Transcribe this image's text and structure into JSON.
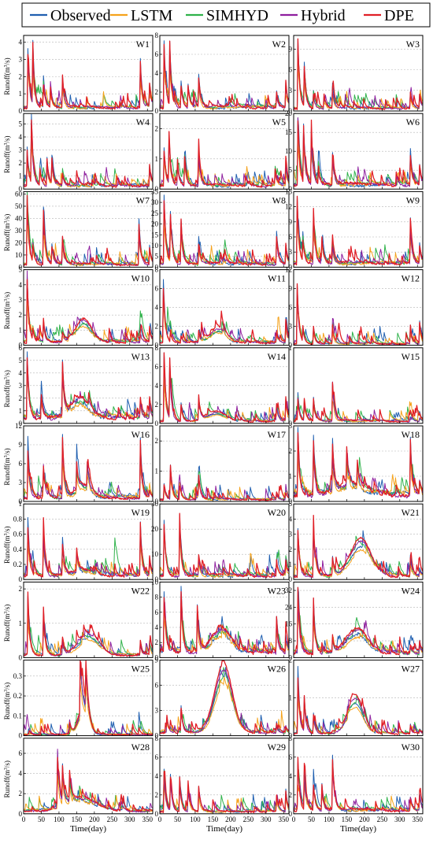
{
  "legend": {
    "entries": [
      {
        "name": "Observed",
        "color": "#1f5fb0"
      },
      {
        "name": "LSTM",
        "color": "#f5a21b"
      },
      {
        "name": "SIMHYD",
        "color": "#2fb24a"
      },
      {
        "name": "Hybrid",
        "color": "#8e1e9e"
      },
      {
        "name": "DPE",
        "color": "#e01f26"
      }
    ]
  },
  "axes": {
    "xlabel": "Time(day)",
    "ylabel_base": "Runoff(m",
    "ylabel_sup": "3",
    "ylabel_end": "/s)"
  },
  "chart_data": {
    "type": "line",
    "x_range": [
      0,
      365
    ],
    "x_ticks": [
      0,
      50,
      100,
      150,
      200,
      250,
      300,
      350
    ],
    "grid": "horizontal-dashed",
    "legend_placement": "top",
    "series": [
      "Observed",
      "LSTM",
      "SIMHYD",
      "Hybrid",
      "DPE"
    ],
    "panels": [
      {
        "id": "W1",
        "yticks": [
          0,
          1,
          2,
          3,
          4
        ],
        "ymax": 4.4,
        "base": 0.25,
        "peaks": [
          [
            12,
            3.7
          ],
          [
            25,
            4.1
          ],
          [
            55,
            1.8
          ],
          [
            75,
            1.6
          ],
          [
            110,
            2.0
          ],
          [
            330,
            2.8
          ],
          [
            355,
            1.9
          ]
        ],
        "season": null,
        "seed": 1
      },
      {
        "id": "W2",
        "yticks": [
          0,
          2,
          4,
          6,
          8
        ],
        "ymax": 8,
        "base": 0.5,
        "peaks": [
          [
            12,
            7.5
          ],
          [
            28,
            6.8
          ],
          [
            60,
            3.1
          ],
          [
            80,
            2.8
          ],
          [
            110,
            3.8
          ],
          [
            330,
            2.2
          ],
          [
            355,
            3.6
          ]
        ],
        "season": null,
        "seed": 2
      },
      {
        "id": "W3",
        "yticks": [
          0,
          3,
          6,
          9
        ],
        "ymax": 11,
        "base": 0.5,
        "peaks": [
          [
            12,
            10.5
          ],
          [
            30,
            6.5
          ],
          [
            55,
            3.0
          ],
          [
            85,
            2.8
          ],
          [
            110,
            3.5
          ],
          [
            330,
            2.8
          ],
          [
            355,
            3.0
          ]
        ],
        "season": null,
        "seed": 3
      },
      {
        "id": "W4",
        "yticks": [
          0,
          1,
          2,
          3,
          4,
          5
        ],
        "ymax": 5.8,
        "base": 0.35,
        "peaks": [
          [
            10,
            3.0
          ],
          [
            22,
            5.3
          ],
          [
            45,
            2.0
          ],
          [
            65,
            2.5
          ],
          [
            80,
            2.4
          ],
          [
            110,
            1.2
          ],
          [
            355,
            2.2
          ]
        ],
        "season": null,
        "seed": 4
      },
      {
        "id": "W5",
        "yticks": [
          0,
          1,
          2
        ],
        "ymax": 2.5,
        "base": 0.15,
        "peaks": [
          [
            12,
            1.4
          ],
          [
            25,
            2.1
          ],
          [
            50,
            0.9
          ],
          [
            70,
            1.2
          ],
          [
            110,
            1.3
          ],
          [
            325,
            0.8
          ],
          [
            355,
            0.9
          ]
        ],
        "season": null,
        "seed": 5
      },
      {
        "id": "W6",
        "yticks": [
          0,
          5,
          10,
          15,
          20
        ],
        "ymax": 20,
        "base": 1.5,
        "peaks": [
          [
            12,
            19
          ],
          [
            28,
            16
          ],
          [
            50,
            16
          ],
          [
            70,
            6
          ],
          [
            110,
            10
          ],
          [
            330,
            10
          ],
          [
            355,
            7.5
          ]
        ],
        "season": null,
        "seed": 6
      },
      {
        "id": "W7",
        "yticks": [
          0,
          10,
          20,
          30,
          40,
          50,
          60
        ],
        "ymax": 62,
        "base": 3,
        "peaks": [
          [
            10,
            60
          ],
          [
            25,
            22
          ],
          [
            55,
            58
          ],
          [
            80,
            18
          ],
          [
            110,
            25
          ],
          [
            325,
            42
          ],
          [
            355,
            20
          ]
        ],
        "season": null,
        "seed": 7
      },
      {
        "id": "W8",
        "yticks": [
          0,
          5,
          10,
          15,
          20,
          25,
          30,
          35
        ],
        "ymax": 35,
        "base": 2,
        "peaks": [
          [
            12,
            34
          ],
          [
            30,
            24
          ],
          [
            60,
            22
          ],
          [
            110,
            12
          ],
          [
            180,
            5
          ],
          [
            330,
            16
          ],
          [
            355,
            12
          ]
        ],
        "season": null,
        "seed": 8
      },
      {
        "id": "W9",
        "yticks": [
          0,
          3,
          6,
          9,
          12,
          15
        ],
        "ymax": 15,
        "base": 1,
        "peaks": [
          [
            10,
            14
          ],
          [
            25,
            6
          ],
          [
            55,
            13
          ],
          [
            80,
            5
          ],
          [
            110,
            5
          ],
          [
            330,
            9.5
          ],
          [
            355,
            5.5
          ]
        ],
        "season": null,
        "seed": 9
      },
      {
        "id": "W10",
        "yticks": [
          0,
          1,
          2,
          3,
          4,
          5
        ],
        "ymax": 5,
        "base": 0.3,
        "peaks": [
          [
            10,
            4.6
          ],
          [
            25,
            1.2
          ],
          [
            55,
            2.0
          ],
          [
            110,
            1.0
          ],
          [
            330,
            1.0
          ],
          [
            355,
            1.4
          ]
        ],
        "season": {
          "center": 170,
          "width": 30,
          "amp": 1.2
        },
        "seed": 10
      },
      {
        "id": "W11",
        "yticks": [
          0,
          2,
          4,
          6,
          8
        ],
        "ymax": 8,
        "base": 0.4,
        "peaks": [
          [
            10,
            6.8
          ],
          [
            30,
            1.5
          ],
          [
            60,
            1.2
          ],
          [
            110,
            1.6
          ],
          [
            330,
            1.5
          ],
          [
            355,
            3.3
          ]
        ],
        "season": {
          "center": 165,
          "width": 30,
          "amp": 1.2
        },
        "seed": 11
      },
      {
        "id": "W12",
        "yticks": [
          0,
          3,
          6,
          9,
          12
        ],
        "ymax": 12,
        "base": 0.3,
        "peaks": [
          [
            10,
            9.8
          ],
          [
            25,
            3.0
          ],
          [
            55,
            3.5
          ],
          [
            110,
            3.0
          ],
          [
            330,
            3.0
          ],
          [
            355,
            4.5
          ]
        ],
        "season": null,
        "seed": 12
      },
      {
        "id": "W13",
        "yticks": [
          0,
          1,
          2,
          3,
          4,
          5,
          6
        ],
        "ymax": 6,
        "base": 0.6,
        "peaks": [
          [
            10,
            5.8
          ],
          [
            50,
            2.5
          ],
          [
            110,
            4.5
          ],
          [
            330,
            2.0
          ],
          [
            355,
            2.2
          ]
        ],
        "season": {
          "center": 160,
          "width": 35,
          "amp": 1.2
        },
        "seed": 13
      },
      {
        "id": "W14",
        "yticks": [
          0,
          2,
          4,
          6,
          8
        ],
        "ymax": 8,
        "base": 0.3,
        "peaks": [
          [
            12,
            7.5
          ],
          [
            28,
            6.5
          ],
          [
            60,
            2.2
          ],
          [
            110,
            2.7
          ],
          [
            330,
            2.0
          ],
          [
            355,
            3.2
          ]
        ],
        "season": {
          "center": 160,
          "width": 35,
          "amp": 0.8
        },
        "seed": 14
      },
      {
        "id": "W15",
        "yticks": [
          0,
          1
        ],
        "ymax": 1,
        "base": 0.04,
        "peaks": [
          [
            12,
            0.3
          ],
          [
            30,
            0.3
          ],
          [
            55,
            0.4
          ],
          [
            110,
            0.55
          ],
          [
            330,
            0.08
          ],
          [
            355,
            0.1
          ]
        ],
        "season": null,
        "seed": 15
      },
      {
        "id": "W16",
        "yticks": [
          0,
          3,
          6,
          9,
          12
        ],
        "ymax": 12,
        "base": 0.8,
        "peaks": [
          [
            12,
            9.0
          ],
          [
            55,
            6.0
          ],
          [
            110,
            10.0
          ],
          [
            150,
            5.0
          ],
          [
            180,
            5.0
          ],
          [
            330,
            9.5
          ],
          [
            355,
            2.0
          ]
        ],
        "season": {
          "center": 170,
          "width": 30,
          "amp": 1.5
        },
        "seed": 16
      },
      {
        "id": "W17",
        "yticks": [
          0,
          1,
          2
        ],
        "ymax": 2.5,
        "base": 0.08,
        "peaks": [
          [
            12,
            0.6
          ],
          [
            30,
            1.2
          ],
          [
            55,
            0.7
          ],
          [
            110,
            0.8
          ],
          [
            330,
            0.3
          ],
          [
            355,
            0.3
          ]
        ],
        "season": null,
        "seed": 17
      },
      {
        "id": "W18",
        "yticks": [
          0,
          1,
          2,
          3
        ],
        "ymax": 3,
        "base": 0.35,
        "peaks": [
          [
            12,
            2.8
          ],
          [
            55,
            2.9
          ],
          [
            110,
            2.0
          ],
          [
            150,
            1.6
          ],
          [
            180,
            1.3
          ],
          [
            330,
            2.5
          ],
          [
            355,
            1.0
          ]
        ],
        "season": {
          "center": 160,
          "width": 60,
          "amp": 0.3
        },
        "seed": 18
      },
      {
        "id": "W19",
        "yticks": [
          0.0,
          0.2,
          0.4,
          0.6,
          0.8,
          1.0
        ],
        "ymax": 1.0,
        "base": 0.07,
        "peaks": [
          [
            12,
            0.8
          ],
          [
            55,
            0.8
          ],
          [
            110,
            0.5
          ],
          [
            150,
            0.35
          ],
          [
            330,
            0.75
          ],
          [
            355,
            0.35
          ]
        ],
        "season": {
          "center": 170,
          "width": 40,
          "amp": 0.05
        },
        "seed": 19
      },
      {
        "id": "W20",
        "yticks": [
          0,
          10,
          20,
          30
        ],
        "ymax": 30,
        "base": 2,
        "peaks": [
          [
            12,
            24
          ],
          [
            55,
            30
          ],
          [
            110,
            10
          ],
          [
            180,
            5
          ],
          [
            330,
            8
          ],
          [
            355,
            9
          ]
        ],
        "season": null,
        "seed": 20
      },
      {
        "id": "W21",
        "yticks": [
          0,
          1,
          2,
          3,
          4,
          5
        ],
        "ymax": 5,
        "base": 0.3,
        "peaks": [
          [
            12,
            3.4
          ],
          [
            55,
            4.2
          ],
          [
            110,
            1.5
          ],
          [
            330,
            1.4
          ],
          [
            355,
            0.9
          ]
        ],
        "season": {
          "center": 190,
          "width": 40,
          "amp": 2.0
        },
        "seed": 21
      },
      {
        "id": "W22",
        "yticks": [
          0,
          1,
          2
        ],
        "ymax": 2.2,
        "base": 0.1,
        "peaks": [
          [
            12,
            1.8
          ],
          [
            55,
            1.7
          ],
          [
            110,
            0.5
          ],
          [
            330,
            0.5
          ],
          [
            355,
            0.5
          ]
        ],
        "season": {
          "center": 185,
          "width": 40,
          "amp": 0.5
        },
        "seed": 22
      },
      {
        "id": "W23",
        "yticks": [
          0,
          2,
          4,
          6,
          8,
          10
        ],
        "ymax": 10,
        "base": 1.0,
        "peaks": [
          [
            12,
            9.0
          ],
          [
            60,
            9.5
          ],
          [
            105,
            8.0
          ],
          [
            330,
            5.5
          ],
          [
            355,
            3.5
          ]
        ],
        "season": {
          "center": 175,
          "width": 35,
          "amp": 2.5
        },
        "seed": 23
      },
      {
        "id": "W24",
        "yticks": [
          0,
          8,
          16,
          24,
          32
        ],
        "ymax": 36,
        "base": 3,
        "peaks": [
          [
            12,
            34
          ],
          [
            55,
            33
          ],
          [
            110,
            10
          ],
          [
            330,
            7
          ],
          [
            355,
            9
          ]
        ],
        "season": {
          "center": 180,
          "width": 40,
          "amp": 9
        },
        "seed": 24
      },
      {
        "id": "W25",
        "yticks": [
          0.0,
          0.1,
          0.2,
          0.3
        ],
        "ymax": 0.38,
        "base": 0.008,
        "peaks": [
          [
            160,
            0.32
          ],
          [
            175,
            0.3
          ]
        ],
        "season": {
          "center": 170,
          "width": 20,
          "amp": 0.12
        },
        "seed": 25
      },
      {
        "id": "W26",
        "yticks": [
          0,
          3,
          6,
          9
        ],
        "ymax": 9,
        "base": 0.5,
        "peaks": [
          [
            20,
            2.0
          ],
          [
            60,
            3.5
          ],
          [
            330,
            1.5
          ],
          [
            355,
            1.2
          ]
        ],
        "season": {
          "center": 180,
          "width": 35,
          "amp": 6.5
        },
        "seed": 26
      },
      {
        "id": "W27",
        "yticks": [
          0,
          1,
          2
        ],
        "ymax": 2,
        "base": 0.08,
        "peaks": [
          [
            12,
            1.7
          ],
          [
            30,
            1.0
          ],
          [
            55,
            0.7
          ],
          [
            330,
            0.3
          ],
          [
            355,
            0.2
          ]
        ],
        "season": {
          "center": 175,
          "width": 30,
          "amp": 0.8
        },
        "seed": 27
      },
      {
        "id": "W28",
        "yticks": [
          0,
          2,
          4,
          6
        ],
        "ymax": 7.5,
        "base": 0.4,
        "peaks": [
          [
            95,
            6.7
          ],
          [
            110,
            4.0
          ],
          [
            130,
            3.0
          ]
        ],
        "season": {
          "center": 160,
          "width": 60,
          "amp": 1.0
        },
        "seed": 28
      },
      {
        "id": "W29",
        "yticks": [
          0,
          2,
          4,
          6,
          8
        ],
        "ymax": 8,
        "base": 0.3,
        "peaks": [
          [
            12,
            4.5
          ],
          [
            30,
            4.0
          ],
          [
            55,
            4.5
          ],
          [
            80,
            3.0
          ],
          [
            110,
            3.0
          ],
          [
            330,
            1.5
          ],
          [
            355,
            2.8
          ]
        ],
        "season": null,
        "seed": 29
      },
      {
        "id": "W30",
        "yticks": [
          0,
          2,
          4,
          6,
          8
        ],
        "ymax": 8,
        "base": 0.5,
        "peaks": [
          [
            12,
            5.5
          ],
          [
            30,
            4.5
          ],
          [
            55,
            4.0
          ],
          [
            80,
            3.0
          ],
          [
            110,
            6.2
          ],
          [
            330,
            1.8
          ],
          [
            355,
            2.5
          ]
        ],
        "season": null,
        "seed": 30
      }
    ]
  }
}
